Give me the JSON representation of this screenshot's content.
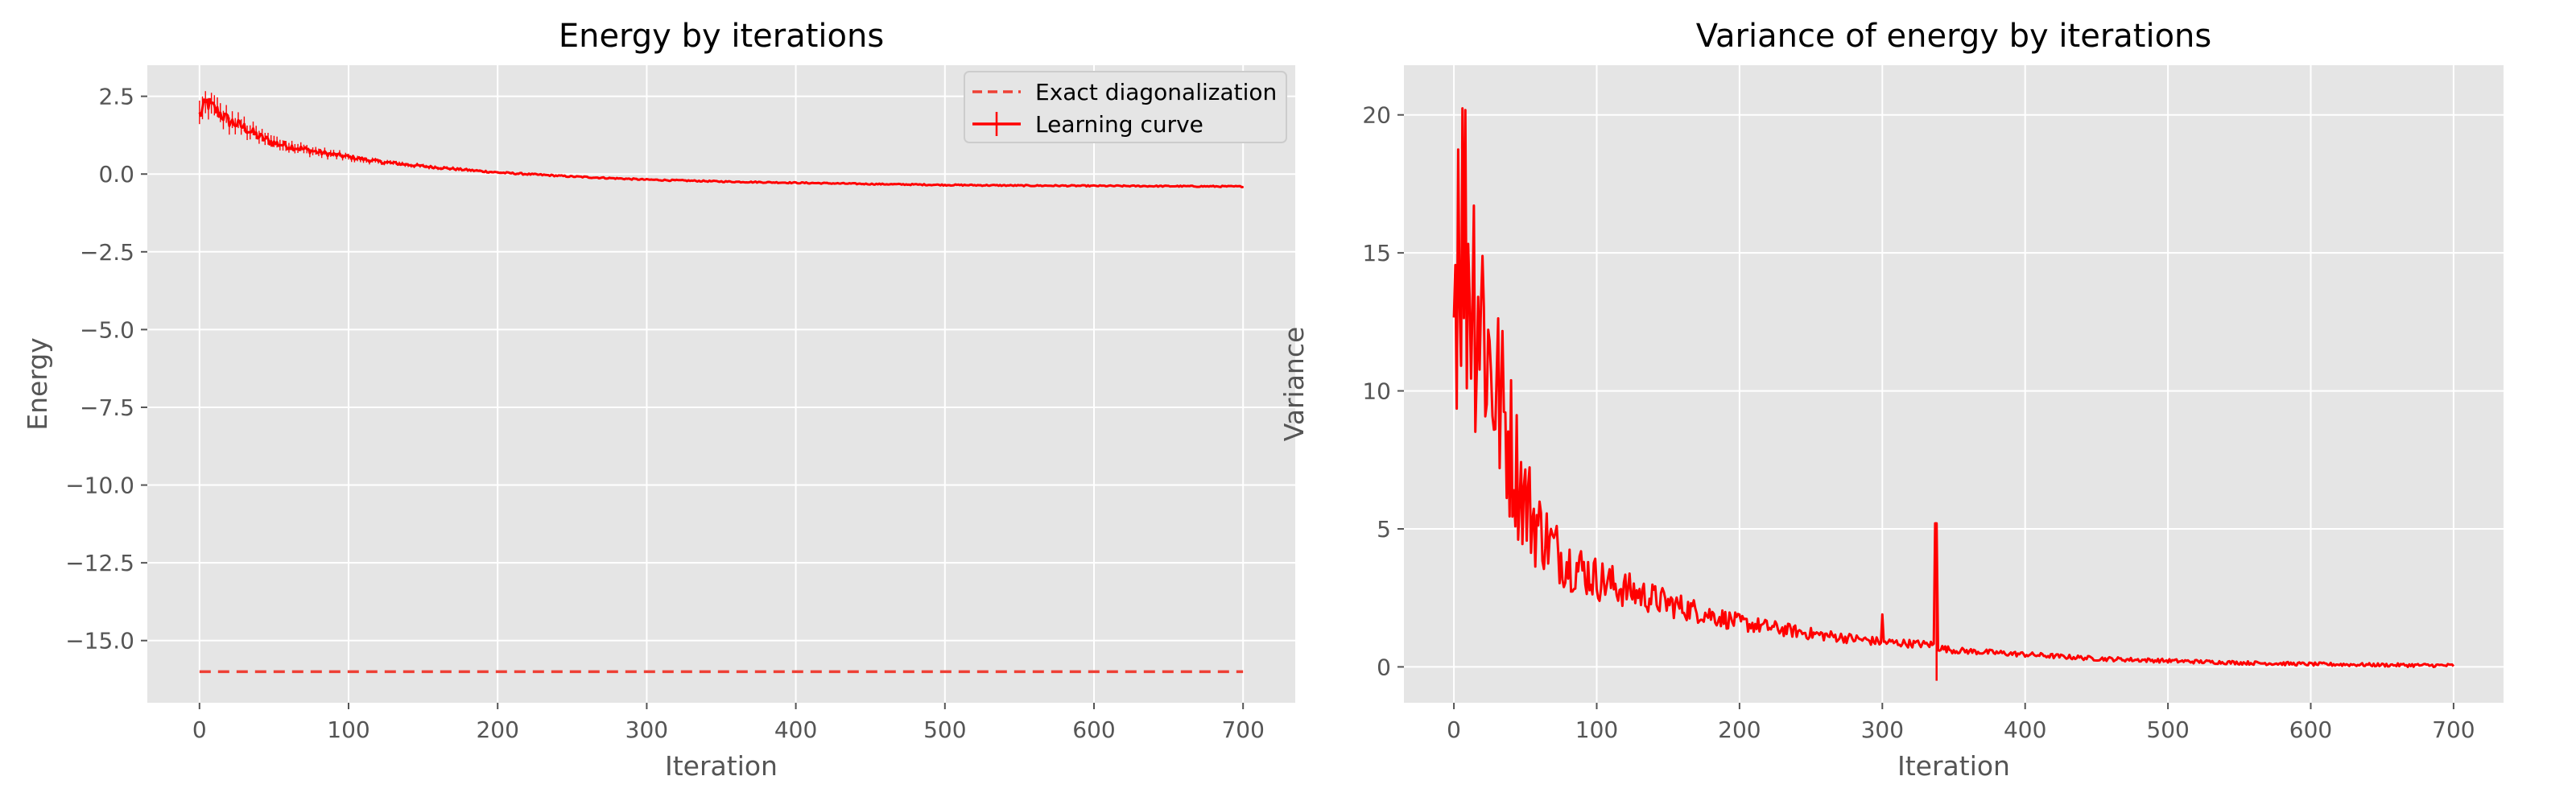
{
  "chart_data": [
    {
      "type": "line",
      "title": "Energy by iterations",
      "xlabel": "Iteration",
      "ylabel": "Energy",
      "xlim": [
        -35,
        735
      ],
      "ylim": [
        -17,
        3.5
      ],
      "xticks": [
        0,
        100,
        200,
        300,
        400,
        500,
        600,
        700
      ],
      "xtick_labels": [
        "0",
        "100",
        "200",
        "300",
        "400",
        "500",
        "600",
        "700"
      ],
      "yticks": [
        2.5,
        0,
        -2.5,
        -5,
        -7.5,
        -10,
        -12.5,
        -15
      ],
      "ytick_labels": [
        "2.5",
        "0.0",
        "−2.5",
        "−5.0",
        "−7.5",
        "−10.0",
        "−12.5",
        "−15.0"
      ],
      "grid": true,
      "legend_position": "top-right",
      "series": [
        {
          "name": "Exact diagonalization",
          "style": "dashed",
          "color": "#ee4035",
          "x": [
            0,
            700
          ],
          "y": [
            -16.0,
            -16.0
          ]
        },
        {
          "name": "Learning curve",
          "style": "solid-errorbar",
          "color": "#ff0000",
          "x": [
            0,
            5,
            10,
            20,
            30,
            40,
            50,
            60,
            80,
            100,
            120,
            150,
            200,
            250,
            300,
            350,
            400,
            450,
            500,
            550,
            600,
            650,
            700
          ],
          "y": [
            1.9,
            2.3,
            2.1,
            1.7,
            1.5,
            1.2,
            1.0,
            0.9,
            0.7,
            0.55,
            0.4,
            0.25,
            0.05,
            -0.08,
            -0.18,
            -0.24,
            -0.28,
            -0.32,
            -0.35,
            -0.37,
            -0.38,
            -0.39,
            -0.4
          ]
        }
      ]
    },
    {
      "type": "line",
      "title": "Variance of energy by iterations",
      "xlabel": "Iteration",
      "ylabel": "Variance",
      "xlim": [
        -35,
        735
      ],
      "ylim": [
        -1.3,
        21.8
      ],
      "xticks": [
        0,
        100,
        200,
        300,
        400,
        500,
        600,
        700
      ],
      "xtick_labels": [
        "0",
        "100",
        "200",
        "300",
        "400",
        "500",
        "600",
        "700"
      ],
      "yticks": [
        0,
        5,
        10,
        15,
        20
      ],
      "ytick_labels": [
        "0",
        "5",
        "10",
        "15",
        "20"
      ],
      "grid": true,
      "series": [
        {
          "color": "#ff0000",
          "x": [
            0,
            3,
            6,
            10,
            15,
            20,
            25,
            30,
            40,
            50,
            60,
            70,
            80,
            100,
            120,
            150,
            200,
            250,
            300,
            337,
            338,
            339,
            350,
            400,
            450,
            500,
            550,
            600,
            650,
            700
          ],
          "y": [
            13,
            18,
            16,
            15,
            14,
            13,
            11,
            10,
            8,
            6,
            5,
            4.3,
            3.8,
            3.2,
            2.8,
            2.3,
            1.6,
            1.2,
            0.9,
            0.8,
            5.2,
            0.7,
            0.6,
            0.45,
            0.3,
            0.22,
            0.15,
            0.1,
            0.07,
            0.05
          ]
        }
      ]
    }
  ]
}
